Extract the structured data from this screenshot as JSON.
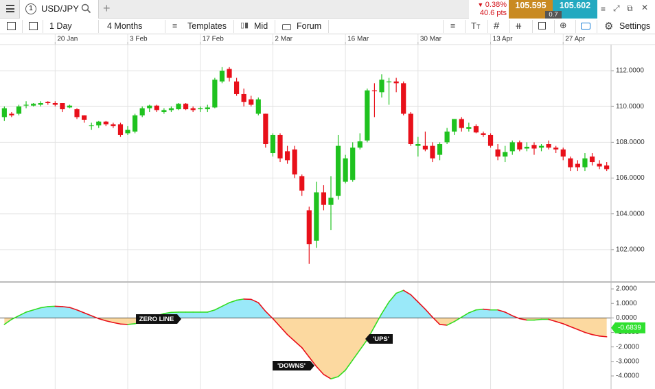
{
  "tabs": {
    "number": "1",
    "symbol": "USD/JPY"
  },
  "quote": {
    "change": "0.38%",
    "points": "40.6 pts",
    "sell": "105.595",
    "spread": "0.7",
    "buy": "105.602"
  },
  "toolbar": {
    "interval": "1 Day",
    "range": "4 Months",
    "templates": "Templates",
    "price_type": "Mid",
    "forum": "Forum",
    "settings": "Settings"
  },
  "chart_data": [
    {
      "type": "candlestick",
      "up_color": "#1fc21f",
      "down_color": "#e8101a",
      "grid": true,
      "xlim": [
        -0.6,
        83.6
      ],
      "xticks": [
        {
          "value": 7,
          "label": "20 Jan"
        },
        {
          "value": 17,
          "label": "3 Feb"
        },
        {
          "value": 27,
          "label": "17 Feb"
        },
        {
          "value": 37,
          "label": "2 Mar"
        },
        {
          "value": 47,
          "label": "16 Mar"
        },
        {
          "value": 57,
          "label": "30 Mar"
        },
        {
          "value": 67,
          "label": "13 Apr"
        },
        {
          "value": 77,
          "label": "27 Apr"
        }
      ],
      "ylim": [
        100.23,
        113.46
      ],
      "yticks": [
        {
          "value": 102,
          "label": "102.0000"
        },
        {
          "value": 104,
          "label": "104.0000"
        },
        {
          "value": 106,
          "label": "106.0000"
        },
        {
          "value": 108,
          "label": "108.0000"
        },
        {
          "value": 110,
          "label": "110.0000"
        },
        {
          "value": 112,
          "label": "112.0000"
        }
      ],
      "open": [
        109.4,
        109.6,
        109.6,
        110.1,
        110.05,
        110.1,
        110.25,
        110.2,
        110.2,
        109.95,
        109.85,
        109.5,
        108.9,
        108.95,
        109.15,
        109.0,
        109.0,
        108.5,
        108.6,
        109.5,
        109.9,
        110.05,
        109.7,
        109.8,
        109.85,
        110.15,
        109.9,
        109.85,
        109.85,
        109.95,
        111.4,
        112.1,
        111.4,
        110.7,
        110.4,
        109.6,
        109.6,
        107.4,
        108.4,
        107.5,
        107.6,
        106.1,
        104.2,
        102.5,
        105.2,
        104.5,
        105.0,
        105.8,
        105.9,
        107.7,
        108.1,
        110.9,
        110.8,
        111.35,
        111.4,
        111.3,
        109.6,
        107.8,
        107.8,
        107.8,
        107.3,
        108.0,
        108.6,
        109.3,
        108.75,
        108.9,
        108.5,
        108.4,
        107.6,
        107.2,
        107.5,
        108.0,
        107.65,
        107.85,
        107.7,
        107.9,
        107.7,
        107.6,
        107.1,
        106.8,
        106.6,
        107.2,
        106.8,
        106.7
      ],
      "high": [
        110.0,
        109.7,
        110.1,
        110.3,
        110.2,
        110.3,
        110.3,
        110.3,
        110.2,
        110.1,
        109.9,
        109.5,
        109.1,
        109.2,
        109.2,
        109.1,
        109.1,
        108.9,
        109.6,
        110.0,
        110.1,
        110.1,
        109.9,
        110.0,
        110.2,
        110.2,
        110.0,
        110.0,
        110.1,
        111.6,
        112.2,
        112.2,
        111.6,
        111.0,
        110.6,
        110.5,
        109.6,
        108.5,
        108.5,
        107.8,
        107.8,
        106.2,
        104.4,
        105.8,
        105.6,
        106.1,
        108.4,
        107.3,
        108.0,
        108.5,
        111.0,
        111.3,
        111.8,
        111.6,
        111.6,
        111.4,
        109.7,
        108.3,
        108.6,
        108.0,
        108.0,
        108.8,
        109.3,
        109.4,
        109.1,
        109.0,
        108.6,
        108.5,
        107.9,
        107.8,
        108.1,
        108.1,
        108.0,
        108.0,
        107.9,
        108.1,
        107.8,
        107.7,
        107.2,
        107.0,
        107.4,
        107.4,
        107.0,
        106.9
      ],
      "low": [
        109.2,
        109.4,
        109.5,
        109.9,
        110.0,
        110.0,
        110.1,
        110.0,
        109.7,
        109.9,
        109.3,
        109.1,
        108.7,
        108.8,
        108.9,
        108.8,
        108.3,
        108.4,
        108.5,
        109.4,
        109.7,
        109.7,
        109.6,
        109.7,
        109.8,
        109.8,
        109.7,
        109.7,
        109.7,
        109.9,
        111.3,
        111.4,
        110.6,
        110.0,
        110.0,
        109.5,
        107.7,
        107.2,
        106.9,
        106.8,
        106.0,
        105.0,
        101.2,
        102.1,
        104.2,
        103.1,
        104.8,
        105.7,
        105.8,
        107.6,
        108.0,
        109.4,
        110.5,
        110.1,
        110.8,
        109.5,
        107.8,
        107.2,
        107.5,
        106.9,
        107.0,
        107.9,
        108.4,
        108.6,
        108.6,
        108.5,
        108.3,
        107.7,
        107.0,
        106.9,
        107.3,
        107.5,
        107.5,
        107.3,
        107.5,
        107.6,
        107.4,
        107.0,
        106.4,
        106.4,
        106.4,
        106.7,
        106.5,
        106.4
      ],
      "close": [
        109.9,
        109.5,
        110.0,
        110.1,
        110.15,
        110.2,
        110.2,
        110.1,
        109.85,
        110.05,
        109.4,
        109.25,
        108.95,
        109.15,
        109.0,
        108.9,
        108.4,
        108.7,
        109.5,
        109.9,
        110.05,
        109.8,
        109.8,
        109.9,
        110.15,
        109.85,
        109.8,
        109.9,
        109.95,
        111.5,
        112.0,
        111.6,
        110.7,
        110.25,
        110.1,
        110.4,
        107.9,
        108.4,
        107.1,
        107.0,
        106.2,
        105.3,
        102.3,
        105.2,
        104.5,
        104.9,
        107.8,
        107.1,
        107.7,
        108.05,
        110.9,
        110.85,
        111.5,
        111.4,
        111.3,
        109.6,
        107.9,
        107.9,
        107.6,
        107.1,
        107.9,
        108.6,
        109.3,
        108.8,
        108.85,
        108.55,
        108.4,
        107.8,
        107.2,
        107.45,
        108.0,
        107.6,
        107.75,
        107.65,
        107.8,
        107.7,
        107.6,
        107.2,
        106.6,
        106.6,
        107.1,
        106.9,
        106.65,
        106.5
      ]
    },
    {
      "type": "oscillator",
      "up_color": "#33dd22",
      "down_color": "#e8101a",
      "fill_above": "#9ae9f9",
      "fill_below": "#fcd9a0",
      "xlim": [
        -0.6,
        83.6
      ],
      "ylim": [
        -4.9,
        2.43
      ],
      "yticks": [
        {
          "value": 2,
          "label": "2.0000"
        },
        {
          "value": 1,
          "label": "1.0000"
        },
        {
          "value": 0,
          "label": "0.0000"
        },
        {
          "value": -1,
          "label": "-1.0000"
        },
        {
          "value": -2,
          "label": "-2.0000"
        },
        {
          "value": -3,
          "label": "-3.0000"
        },
        {
          "value": -4,
          "label": "-4.0000"
        }
      ],
      "values": [
        -0.45,
        -0.1,
        0.15,
        0.4,
        0.55,
        0.7,
        0.78,
        0.8,
        0.78,
        0.72,
        0.55,
        0.35,
        0.15,
        -0.05,
        -0.2,
        -0.32,
        -0.42,
        -0.45,
        -0.4,
        -0.25,
        -0.05,
        0.15,
        0.3,
        0.38,
        0.4,
        0.4,
        0.4,
        0.4,
        0.4,
        0.55,
        0.8,
        1.05,
        1.22,
        1.3,
        1.28,
        1.05,
        0.45,
        -0.05,
        -0.6,
        -1.15,
        -1.6,
        -2.05,
        -2.7,
        -3.35,
        -3.9,
        -4.2,
        -4.05,
        -3.6,
        -2.9,
        -2.2,
        -1.5,
        -0.6,
        0.3,
        1.1,
        1.7,
        1.9,
        1.6,
        1.1,
        0.6,
        0.05,
        -0.45,
        -0.5,
        -0.25,
        0.05,
        0.35,
        0.55,
        0.6,
        0.55,
        0.55,
        0.4,
        0.15,
        -0.05,
        -0.15,
        -0.15,
        -0.1,
        -0.1,
        -0.25,
        -0.4,
        -0.6,
        -0.8,
        -1.0,
        -1.15,
        -1.25,
        -1.3
      ],
      "last_value": -0.6839,
      "annotations": [
        "ZERO LINE",
        "'UPS'",
        "'DOWNS'"
      ]
    }
  ]
}
